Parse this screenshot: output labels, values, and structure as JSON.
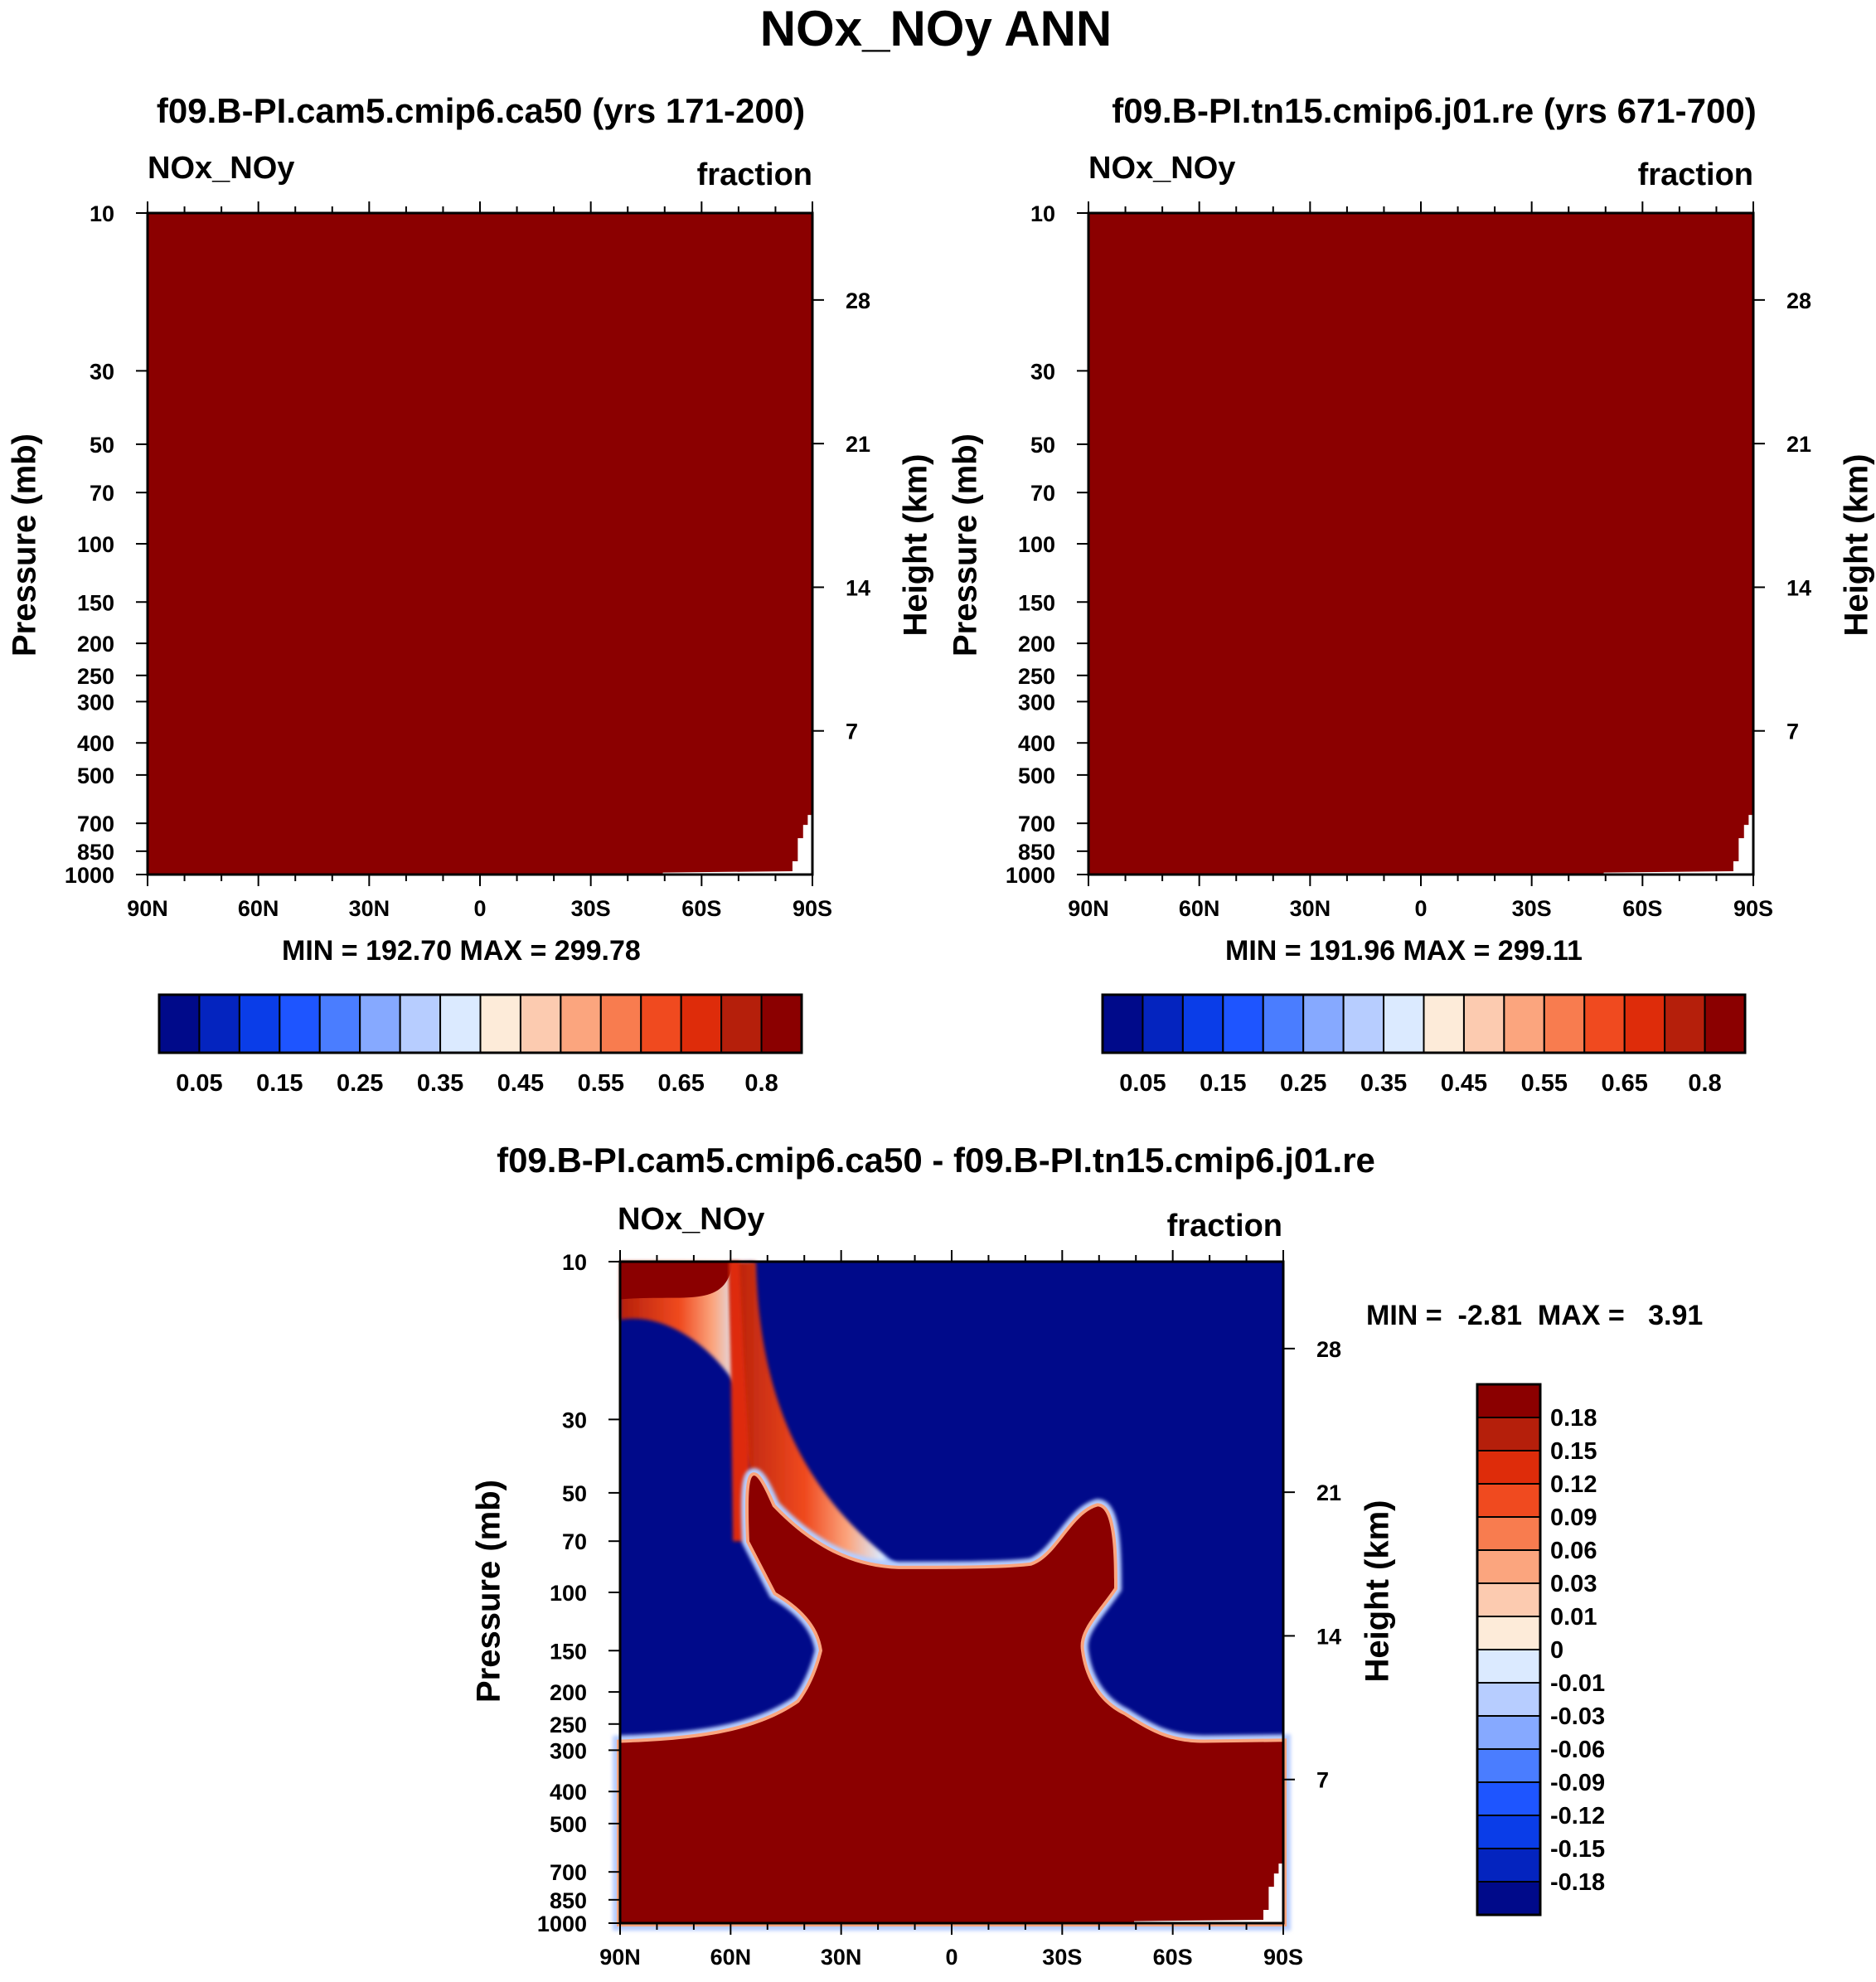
{
  "figure": {
    "title": "NOx_NOy ANN"
  },
  "chart_data": [
    {
      "type": "heatmap",
      "title": "f09.B-PI.cam5.cmip6.ca50 (yrs 171-200)",
      "left_label": "NOx_NOy",
      "right_label": "fraction",
      "ylabel": "Pressure (mb)",
      "ylabel_right": "Height (km)",
      "x_ticks": [
        "90N",
        "60N",
        "30N",
        "0",
        "30S",
        "60S",
        "90S"
      ],
      "y_ticks": [
        "10",
        "30",
        "50",
        "70",
        "100",
        "150",
        "200",
        "250",
        "300",
        "400",
        "500",
        "700",
        "850",
        "1000"
      ],
      "y_right_ticks": [
        "28",
        "21",
        "14",
        "7"
      ],
      "ylim": [
        1000,
        10
      ],
      "stats": "MIN = 192.70  MAX = 299.78",
      "field_description": "uniform maximum colour class across domain; missing below surface near 90S",
      "colorbar": {
        "orientation": "horizontal",
        "labels": [
          "0.05",
          "0.15",
          "0.25",
          "0.35",
          "0.45",
          "0.55",
          "0.65",
          "0.8"
        ],
        "colors": [
          "#000a8a",
          "#0424bf",
          "#0a3de8",
          "#1e55ff",
          "#4a7dff",
          "#86a9ff",
          "#b7cdff",
          "#dbeaff",
          "#fdebd9",
          "#fccbb0",
          "#fba57e",
          "#f87c4f",
          "#f04a1f",
          "#de2c0a",
          "#b51f0b",
          "#8b0000"
        ]
      }
    },
    {
      "type": "heatmap",
      "title": "f09.B-PI.tn15.cmip6.j01.re (yrs 671-700)",
      "left_label": "NOx_NOy",
      "right_label": "fraction",
      "ylabel": "Pressure (mb)",
      "ylabel_right": "Height (km)",
      "x_ticks": [
        "90N",
        "60N",
        "30N",
        "0",
        "30S",
        "60S",
        "90S"
      ],
      "y_ticks": [
        "10",
        "30",
        "50",
        "70",
        "100",
        "150",
        "200",
        "250",
        "300",
        "400",
        "500",
        "700",
        "850",
        "1000"
      ],
      "y_right_ticks": [
        "28",
        "21",
        "14",
        "7"
      ],
      "ylim": [
        1000,
        10
      ],
      "stats": "MIN = 191.96  MAX = 299.11",
      "field_description": "uniform maximum colour class across domain; missing below surface near 90S",
      "colorbar": {
        "orientation": "horizontal",
        "labels": [
          "0.05",
          "0.15",
          "0.25",
          "0.35",
          "0.45",
          "0.55",
          "0.65",
          "0.8"
        ],
        "colors": [
          "#000a8a",
          "#0424bf",
          "#0a3de8",
          "#1e55ff",
          "#4a7dff",
          "#86a9ff",
          "#b7cdff",
          "#dbeaff",
          "#fdebd9",
          "#fccbb0",
          "#fba57e",
          "#f87c4f",
          "#f04a1f",
          "#de2c0a",
          "#b51f0b",
          "#8b0000"
        ]
      }
    },
    {
      "type": "heatmap",
      "title": "f09.B-PI.cam5.cmip6.ca50 - f09.B-PI.tn15.cmip6.j01.re",
      "left_label": "NOx_NOy",
      "right_label": "fraction",
      "ylabel": "Pressure (mb)",
      "ylabel_right": "Height (km)",
      "x_ticks": [
        "90N",
        "60N",
        "30N",
        "0",
        "30S",
        "60S",
        "90S"
      ],
      "y_ticks": [
        "10",
        "30",
        "50",
        "70",
        "100",
        "150",
        "200",
        "250",
        "300",
        "400",
        "500",
        "700",
        "850",
        "1000"
      ],
      "y_right_ticks": [
        "28",
        "21",
        "14",
        "7"
      ],
      "ylim": [
        1000,
        10
      ],
      "stats": "MIN =  -2.81  MAX =   3.91",
      "field_description": "difference: positive in troposphere and equatorial lower stratosphere, negative (blue) elsewhere, positive tongue rising near 60N",
      "colorbar": {
        "orientation": "vertical",
        "labels": [
          "0.18",
          "0.15",
          "0.12",
          "0.09",
          "0.06",
          "0.03",
          "0.01",
          "0",
          "-0.01",
          "-0.03",
          "-0.06",
          "-0.09",
          "-0.12",
          "-0.15",
          "-0.18"
        ],
        "colors": [
          "#8b0000",
          "#b51f0b",
          "#de2c0a",
          "#f04a1f",
          "#f87c4f",
          "#fba57e",
          "#fccbb0",
          "#fdebd9",
          "#dbeaff",
          "#b7cdff",
          "#86a9ff",
          "#4a7dff",
          "#1e55ff",
          "#0a3de8",
          "#0424bf",
          "#000a8a"
        ]
      }
    }
  ]
}
